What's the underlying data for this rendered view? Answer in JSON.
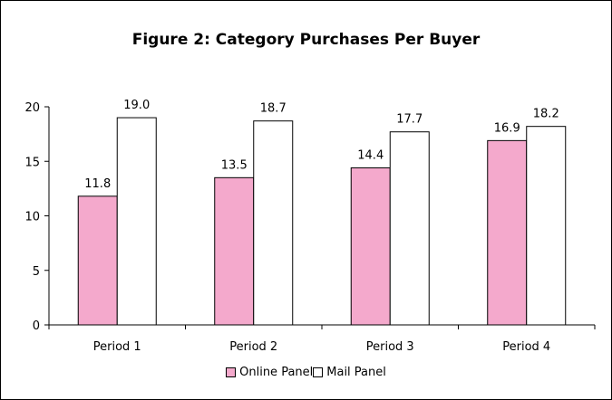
{
  "chart_data": {
    "type": "bar",
    "title": "Figure 2: Category Purchases Per Buyer",
    "xlabel": "",
    "ylabel": "",
    "categories": [
      "Period 1",
      "Period 2",
      "Period 3",
      "Period 4"
    ],
    "series": [
      {
        "name": "Online Panel",
        "values": [
          11.8,
          13.5,
          14.4,
          16.9
        ],
        "labels": [
          "11.8",
          "13.5",
          "14.4",
          "16.9"
        ],
        "color": "#f4a9cc"
      },
      {
        "name": "Mail Panel",
        "values": [
          19.0,
          18.7,
          17.7,
          18.2
        ],
        "labels": [
          "19.0",
          "18.7",
          "17.7",
          "18.2"
        ],
        "color": "#ffffff"
      }
    ],
    "ylim": [
      0,
      20
    ],
    "yticks": [
      0,
      5,
      10,
      15,
      20
    ],
    "grid": false,
    "legend": "bottom"
  }
}
